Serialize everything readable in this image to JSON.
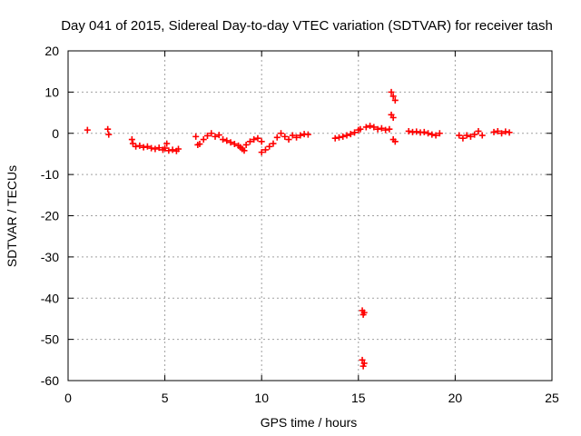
{
  "chart_data": {
    "type": "scatter",
    "title": "Day 041 of 2015, Sidereal Day-to-day VTEC variation (SDTVAR) for receiver tash",
    "xlabel": "GPS time / hours",
    "ylabel": "SDTVAR / TECUs",
    "xlim": [
      0,
      25
    ],
    "ylim": [
      -60,
      20
    ],
    "xticks": [
      0,
      5,
      10,
      15,
      20,
      25
    ],
    "yticks": [
      -60,
      -50,
      -40,
      -30,
      -20,
      -10,
      0,
      10,
      20
    ],
    "grid": true,
    "marker": "plus",
    "color": "#ff0000",
    "series": [
      {
        "name": "SDTVAR",
        "points": [
          [
            1.0,
            0.8
          ],
          [
            2.05,
            1.0
          ],
          [
            2.1,
            -0.3
          ],
          [
            3.3,
            -1.5
          ],
          [
            3.35,
            -2.5
          ],
          [
            3.5,
            -3.2
          ],
          [
            3.7,
            -3.0
          ],
          [
            3.9,
            -3.4
          ],
          [
            4.1,
            -3.2
          ],
          [
            4.3,
            -3.6
          ],
          [
            4.5,
            -3.8
          ],
          [
            4.7,
            -3.5
          ],
          [
            4.9,
            -4.0
          ],
          [
            5.0,
            -3.6
          ],
          [
            5.1,
            -2.5
          ],
          [
            5.2,
            -4.2
          ],
          [
            5.4,
            -4.0
          ],
          [
            5.6,
            -4.3
          ],
          [
            5.7,
            -3.8
          ],
          [
            6.6,
            -0.8
          ],
          [
            6.7,
            -2.8
          ],
          [
            6.8,
            -2.6
          ],
          [
            7.0,
            -1.5
          ],
          [
            7.2,
            -0.6
          ],
          [
            7.4,
            0.0
          ],
          [
            7.6,
            -0.8
          ],
          [
            7.8,
            -0.4
          ],
          [
            8.0,
            -1.5
          ],
          [
            8.2,
            -1.8
          ],
          [
            8.4,
            -2.2
          ],
          [
            8.6,
            -2.6
          ],
          [
            8.8,
            -3.0
          ],
          [
            8.9,
            -3.4
          ],
          [
            9.0,
            -3.8
          ],
          [
            9.1,
            -4.2
          ],
          [
            9.2,
            -2.8
          ],
          [
            9.4,
            -2.0
          ],
          [
            9.6,
            -1.5
          ],
          [
            9.8,
            -1.2
          ],
          [
            10.0,
            -2.0
          ],
          [
            10.0,
            -4.6
          ],
          [
            10.2,
            -4.0
          ],
          [
            10.4,
            -3.2
          ],
          [
            10.6,
            -2.5
          ],
          [
            10.8,
            -1.0
          ],
          [
            11.0,
            0.0
          ],
          [
            11.2,
            -0.8
          ],
          [
            11.4,
            -1.5
          ],
          [
            11.6,
            -0.5
          ],
          [
            11.8,
            -1.0
          ],
          [
            12.0,
            -0.5
          ],
          [
            12.2,
            -0.2
          ],
          [
            12.4,
            -0.3
          ],
          [
            13.8,
            -1.2
          ],
          [
            14.0,
            -1.0
          ],
          [
            14.2,
            -0.8
          ],
          [
            14.4,
            -0.5
          ],
          [
            14.6,
            -0.2
          ],
          [
            14.8,
            0.2
          ],
          [
            15.0,
            0.8
          ],
          [
            15.1,
            1.0
          ],
          [
            15.2,
            -43.0
          ],
          [
            15.25,
            -44.0
          ],
          [
            15.3,
            -43.5
          ],
          [
            15.2,
            -55.0
          ],
          [
            15.25,
            -56.5
          ],
          [
            15.3,
            -55.8
          ],
          [
            15.4,
            1.5
          ],
          [
            15.6,
            1.8
          ],
          [
            15.8,
            1.5
          ],
          [
            16.0,
            1.0
          ],
          [
            16.2,
            1.2
          ],
          [
            16.4,
            0.8
          ],
          [
            16.6,
            1.0
          ],
          [
            16.7,
            10.0
          ],
          [
            16.8,
            9.0
          ],
          [
            16.9,
            8.0
          ],
          [
            16.7,
            4.5
          ],
          [
            16.8,
            3.8
          ],
          [
            16.8,
            -1.5
          ],
          [
            16.9,
            -2.0
          ],
          [
            17.6,
            0.5
          ],
          [
            17.8,
            0.3
          ],
          [
            18.0,
            0.4
          ],
          [
            18.2,
            0.2
          ],
          [
            18.4,
            0.3
          ],
          [
            18.6,
            0.0
          ],
          [
            18.8,
            -0.3
          ],
          [
            19.0,
            -0.5
          ],
          [
            19.2,
            0.0
          ],
          [
            20.2,
            -0.5
          ],
          [
            20.4,
            -1.2
          ],
          [
            20.6,
            -0.5
          ],
          [
            20.8,
            -0.8
          ],
          [
            21.0,
            -0.3
          ],
          [
            21.2,
            0.5
          ],
          [
            21.4,
            -0.5
          ],
          [
            22.0,
            0.3
          ],
          [
            22.2,
            0.5
          ],
          [
            22.4,
            0.0
          ],
          [
            22.6,
            0.4
          ],
          [
            22.8,
            0.2
          ]
        ]
      }
    ]
  }
}
